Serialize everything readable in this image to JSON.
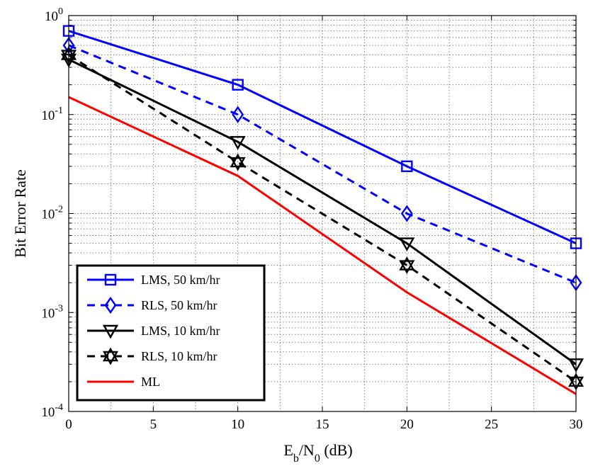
{
  "chart_data": {
    "type": "line",
    "title": "",
    "xlabel": {
      "base": "E",
      "sub1": "b",
      "mid": "/N",
      "sub2": "0",
      "tail": " (dB)"
    },
    "ylabel": "Bit Error Rate",
    "xlim": [
      0,
      30
    ],
    "ylim": [
      0.0001,
      1
    ],
    "yscale": "log",
    "grid": true,
    "legend_position": "bottom-left",
    "x_ticks": [
      "0",
      "5",
      "10",
      "15",
      "20",
      "25",
      "30"
    ],
    "y_ticks": [
      {
        "base": "10",
        "exp": "0"
      },
      {
        "base": "10",
        "exp": "-1"
      },
      {
        "base": "10",
        "exp": "-2"
      },
      {
        "base": "10",
        "exp": "-3"
      },
      {
        "base": "10",
        "exp": "-4"
      }
    ],
    "series": [
      {
        "name": "LMS, 50 km/hr",
        "color": "#0000ff",
        "dash": "solid",
        "marker": "square",
        "x": [
          0,
          10,
          20,
          30
        ],
        "y": [
          0.7,
          0.2,
          0.03,
          0.005
        ]
      },
      {
        "name": "RLS, 50 km/hr",
        "color": "#0000ff",
        "dash": "dashed",
        "marker": "diamond",
        "x": [
          0,
          10,
          20,
          30
        ],
        "y": [
          0.5,
          0.1,
          0.01,
          0.002
        ]
      },
      {
        "name": "LMS, 10 km/hr",
        "color": "#000000",
        "dash": "solid",
        "marker": "triangle-down",
        "x": [
          0,
          10,
          20,
          30
        ],
        "y": [
          0.36,
          0.053,
          0.005,
          0.0003
        ]
      },
      {
        "name": "RLS, 10 km/hr",
        "color": "#000000",
        "dash": "dashed",
        "marker": "hexagram",
        "x": [
          0,
          10,
          20,
          30
        ],
        "y": [
          0.4,
          0.033,
          0.003,
          0.0002
        ]
      },
      {
        "name": "ML",
        "color": "#ff0000",
        "dash": "solid",
        "marker": "none",
        "x": [
          0,
          10,
          20,
          30
        ],
        "y": [
          0.15,
          0.024,
          0.0016,
          0.00015
        ]
      }
    ]
  }
}
